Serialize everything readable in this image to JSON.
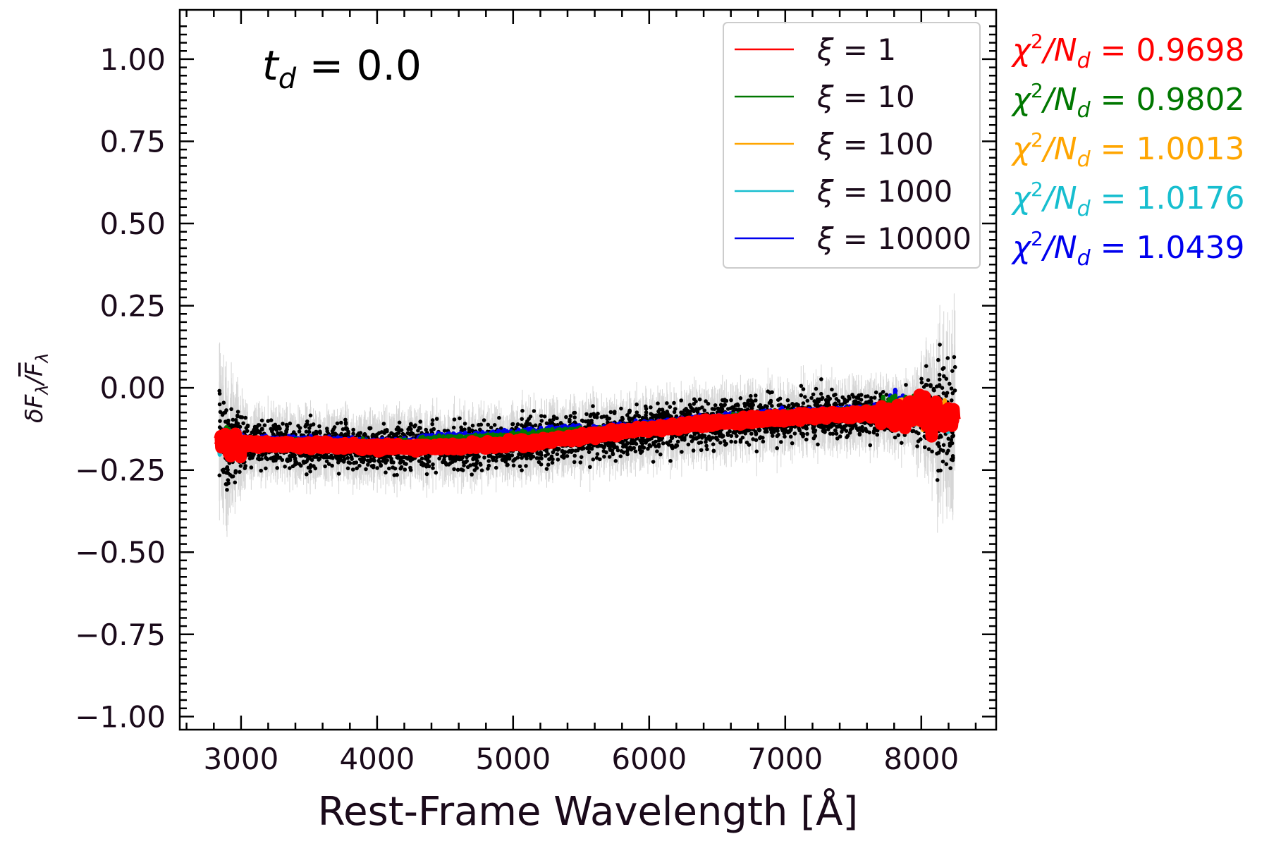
{
  "chart_data": {
    "type": "scatter",
    "title": "",
    "annotation": {
      "td_label": "t",
      "td_sub": "d",
      "td_eq": " = ",
      "td_value": "0.0"
    },
    "xlabel": "Rest-Frame Wavelength [Å]",
    "ylabel_parts": {
      "main": "δF",
      "sub": "λ",
      "slash": "/",
      "bar": "F",
      "bar_sub": "λ"
    },
    "xlim": [
      2550,
      8550
    ],
    "ylim": [
      -1.04,
      1.15
    ],
    "xticks": [
      3000,
      4000,
      5000,
      6000,
      7000,
      8000
    ],
    "xtick_labels": [
      "3000",
      "4000",
      "5000",
      "6000",
      "7000",
      "8000"
    ],
    "yticks": [
      1.0,
      0.75,
      0.5,
      0.25,
      0.0,
      -0.25,
      -0.5,
      -0.75,
      -1.0
    ],
    "ytick_labels": [
      "1.00",
      "0.75",
      "0.50",
      "0.25",
      "0.00",
      "−0.25",
      "−0.50",
      "−0.75",
      "−1.00"
    ],
    "grid": false,
    "legend_position": "top-right",
    "data_points": {
      "x_range": [
        2840,
        8250
      ],
      "count": 4200,
      "trend_x": [
        2840,
        3500,
        4000,
        4500,
        5000,
        5500,
        6000,
        6500,
        7000,
        7500,
        8000,
        8250
      ],
      "trend_y": [
        -0.17,
        -0.175,
        -0.18,
        -0.18,
        -0.17,
        -0.15,
        -0.125,
        -0.105,
        -0.09,
        -0.08,
        -0.075,
        -0.1
      ],
      "color": "#000000",
      "errorbar_color": "#cccccc"
    },
    "series": [
      {
        "name_sym": "ξ",
        "name_val": " = 1",
        "color": "#ff0000",
        "chi2": "0.9698"
      },
      {
        "name_sym": "ξ",
        "name_val": " = 10",
        "color": "#007700",
        "chi2": "0.9802"
      },
      {
        "name_sym": "ξ",
        "name_val": " = 100",
        "color": "#ffa500",
        "chi2": "1.0013"
      },
      {
        "name_sym": "ξ",
        "name_val": " = 1000",
        "color": "#17becf",
        "chi2": "1.0176"
      },
      {
        "name_sym": "ξ",
        "name_val": " = 10000",
        "color": "#0000ee",
        "chi2": "1.0439"
      }
    ],
    "chi_label": {
      "sym": "χ",
      "sup": "2",
      "slash": "/N",
      "sub": "d",
      "eq": " = "
    }
  }
}
